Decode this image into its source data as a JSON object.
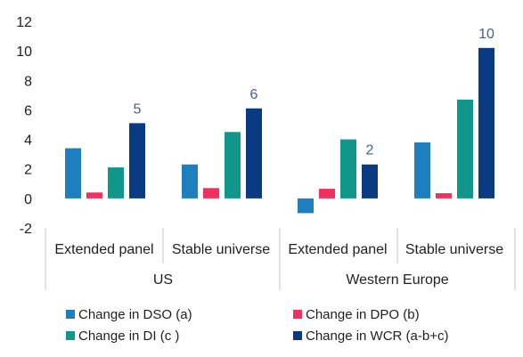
{
  "chart_data": {
    "type": "bar",
    "y_ticks": [
      "12",
      "10",
      "8",
      "6",
      "4",
      "2",
      "0",
      "-2"
    ],
    "ylim": [
      -2,
      12
    ],
    "grid": false,
    "legend_position": "bottom",
    "groups": [
      {
        "label": "US",
        "categories": [
          "Extended panel",
          "Stable universe"
        ]
      },
      {
        "label": "Western Europe",
        "categories": [
          "Extended panel",
          "Stable universe"
        ]
      }
    ],
    "series": [
      {
        "name": "Change in DSO (a)",
        "color": "#1e7fbf",
        "values": [
          3.4,
          2.3,
          -1.0,
          3.8
        ]
      },
      {
        "name": "Change in DPO (b)",
        "color": "#f0305e",
        "values": [
          0.4,
          0.7,
          0.65,
          0.35
        ]
      },
      {
        "name": "Change in DI (c )",
        "color": "#11968c",
        "values": [
          2.1,
          4.5,
          4.0,
          6.7
        ]
      },
      {
        "name": "Change in WCR (a-b+c)",
        "color": "#0a3a82",
        "values": [
          5.1,
          6.1,
          2.3,
          10.2
        ]
      }
    ],
    "data_labels": [
      "5",
      "6",
      "2",
      "10"
    ]
  }
}
